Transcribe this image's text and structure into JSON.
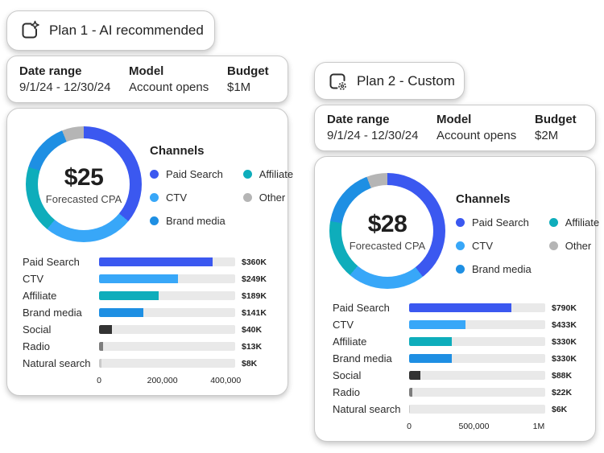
{
  "colors": {
    "card_bg": "#ffffff",
    "card_border": "#c9c9c9",
    "text_dark": "#222222",
    "bar_track": "#e9e9e9"
  },
  "channel_colors": {
    "paid_search": "#3b58f0",
    "ctv": "#38a7f8",
    "brand_media": "#1e8fe3",
    "affiliate": "#0eadbb",
    "other": "#b5b5b5",
    "social": "#333333",
    "radio": "#7d7d7d",
    "natural_search": "#c9c9c9"
  },
  "plans": [
    {
      "title": "Plan 1 - AI recommended",
      "icon": "ai-plan-icon",
      "meta": {
        "date_range_label": "Date range",
        "date_range_value": "9/1/24 - 12/30/24",
        "model_label": "Model",
        "model_value": "Account opens",
        "budget_label": "Budget",
        "budget_value": "$1M"
      },
      "donut_center": {
        "value": "$25",
        "label": "Forecasted CPA"
      },
      "legend": {
        "title": "Channels",
        "items": [
          {
            "label": "Paid Search",
            "color_key": "paid_search"
          },
          {
            "label": "CTV",
            "color_key": "ctv"
          },
          {
            "label": "Brand media",
            "color_key": "brand_media"
          },
          {
            "label": "Affiliate",
            "color_key": "affiliate"
          },
          {
            "label": "Other",
            "color_key": "other"
          }
        ]
      }
    },
    {
      "title": "Plan 2 - Custom",
      "icon": "custom-plan-icon",
      "meta": {
        "date_range_label": "Date range",
        "date_range_value": "9/1/24 - 12/30/24",
        "model_label": "Model",
        "model_value": "Account opens",
        "budget_label": "Budget",
        "budget_value": "$2M"
      },
      "donut_center": {
        "value": "$28",
        "label": "Forecasted CPA"
      },
      "legend": {
        "title": "Channels",
        "items": [
          {
            "label": "Paid Search",
            "color_key": "paid_search"
          },
          {
            "label": "CTV",
            "color_key": "ctv"
          },
          {
            "label": "Brand media",
            "color_key": "brand_media"
          },
          {
            "label": "Affiliate",
            "color_key": "affiliate"
          },
          {
            "label": "Other",
            "color_key": "other"
          }
        ]
      }
    }
  ],
  "chart_data": [
    {
      "type": "pie",
      "subtype": "donut",
      "plan": "Plan 1 - AI recommended",
      "center_value": "$25",
      "center_label": "Forecasted CPA",
      "segments": [
        {
          "label": "Paid Search",
          "value": 360000,
          "color_key": "paid_search"
        },
        {
          "label": "CTV",
          "value": 249000,
          "color_key": "ctv"
        },
        {
          "label": "Affiliate",
          "value": 189000,
          "color_key": "affiliate"
        },
        {
          "label": "Brand media",
          "value": 141000,
          "color_key": "brand_media"
        },
        {
          "label": "Other",
          "value": 61000,
          "color_key": "other"
        }
      ]
    },
    {
      "type": "bar",
      "plan": "Plan 1 - AI recommended",
      "orientation": "horizontal",
      "categories": [
        "Paid Search",
        "CTV",
        "Affiliate",
        "Brand media",
        "Social",
        "Radio",
        "Natural search"
      ],
      "values": [
        360000,
        249000,
        189000,
        141000,
        40000,
        13000,
        8000
      ],
      "value_labels": [
        "$360K",
        "$249K",
        "$189K",
        "$141K",
        "$40K",
        "$13K",
        "$8K"
      ],
      "color_keys": [
        "paid_search",
        "ctv",
        "affiliate",
        "brand_media",
        "social",
        "radio",
        "natural_search"
      ],
      "x_ticks": [
        {
          "label": "0",
          "value": 0
        },
        {
          "label": "200,000",
          "value": 200000
        },
        {
          "label": "400,000",
          "value": 400000
        }
      ],
      "xlim": [
        0,
        430000
      ]
    },
    {
      "type": "pie",
      "subtype": "donut",
      "plan": "Plan 2 - Custom",
      "center_value": "$28",
      "center_label": "Forecasted CPA",
      "segments": [
        {
          "label": "Paid Search",
          "value": 790000,
          "color_key": "paid_search"
        },
        {
          "label": "CTV",
          "value": 433000,
          "color_key": "ctv"
        },
        {
          "label": "Affiliate",
          "value": 330000,
          "color_key": "affiliate"
        },
        {
          "label": "Brand media",
          "value": 330000,
          "color_key": "brand_media"
        },
        {
          "label": "Other",
          "value": 116000,
          "color_key": "other"
        }
      ]
    },
    {
      "type": "bar",
      "plan": "Plan 2 - Custom",
      "orientation": "horizontal",
      "categories": [
        "Paid Search",
        "CTV",
        "Affiliate",
        "Brand media",
        "Social",
        "Radio",
        "Natural search"
      ],
      "values": [
        790000,
        433000,
        330000,
        330000,
        88000,
        22000,
        6000
      ],
      "value_labels": [
        "$790K",
        "$433K",
        "$330K",
        "$330K",
        "$88K",
        "$22K",
        "$6K"
      ],
      "color_keys": [
        "paid_search",
        "ctv",
        "affiliate",
        "brand_media",
        "social",
        "radio",
        "natural_search"
      ],
      "x_ticks": [
        {
          "label": "0",
          "value": 0
        },
        {
          "label": "500,000",
          "value": 500000
        },
        {
          "label": "1M",
          "value": 1000000
        }
      ],
      "xlim": [
        0,
        1050000
      ]
    }
  ]
}
